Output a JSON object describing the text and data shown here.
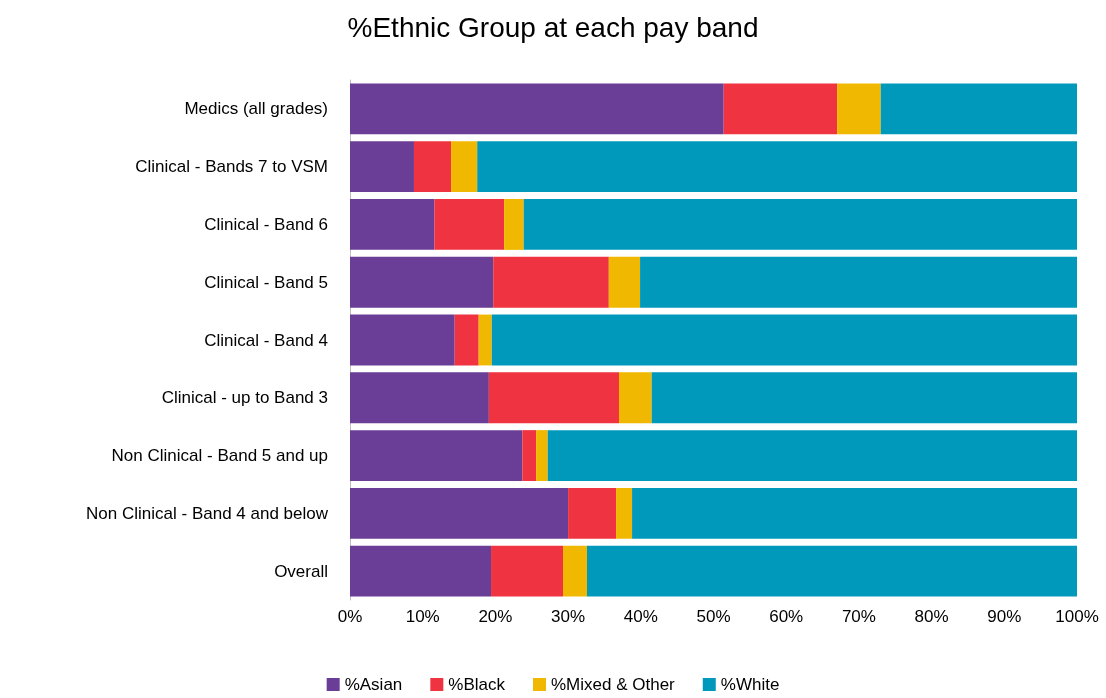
{
  "chart_data": {
    "type": "bar",
    "title": "%Ethnic Group at each pay band",
    "orientation": "horizontal",
    "stacked": true,
    "categories": [
      "Medics (all grades)",
      "Clinical - Bands 7 to VSM",
      "Clinical - Band 6",
      "Clinical - Band 5",
      "Clinical - Band 4",
      "Clinical - up to Band 3",
      "Non Clinical - Band 5 and up",
      "Non Clinical - Band 4 and below",
      "Overall"
    ],
    "series": [
      {
        "name": "%Asian",
        "color": "#6a3d96",
        "values": [
          51.4,
          8.8,
          11.6,
          19.7,
          14.4,
          19.1,
          23.7,
          30.0,
          19.4
        ]
      },
      {
        "name": "%Black",
        "color": "#ef3340",
        "values": [
          15.6,
          5.1,
          9.6,
          15.9,
          3.3,
          17.9,
          1.9,
          6.6,
          9.9
        ]
      },
      {
        "name": "%Mixed & Other",
        "color": "#f0b800",
        "values": [
          6.0,
          3.6,
          2.7,
          4.3,
          1.8,
          4.5,
          1.6,
          2.2,
          3.3
        ]
      },
      {
        "name": "%White",
        "color": "#0099bb",
        "values": [
          27.0,
          82.5,
          76.1,
          60.1,
          80.5,
          58.5,
          72.8,
          61.2,
          67.4
        ]
      }
    ],
    "xlim": [
      0,
      100
    ],
    "xticks": [
      {
        "value": 0,
        "label": "0%"
      },
      {
        "value": 10,
        "label": "10%"
      },
      {
        "value": 20,
        "label": "20%"
      },
      {
        "value": 30,
        "label": "30%"
      },
      {
        "value": 40,
        "label": "40%"
      },
      {
        "value": 50,
        "label": "50%"
      },
      {
        "value": 60,
        "label": "60%"
      },
      {
        "value": 70,
        "label": "70%"
      },
      {
        "value": 80,
        "label": "80%"
      },
      {
        "value": 90,
        "label": "90%"
      },
      {
        "value": 100,
        "label": "100%"
      }
    ],
    "legend": "bottom"
  }
}
